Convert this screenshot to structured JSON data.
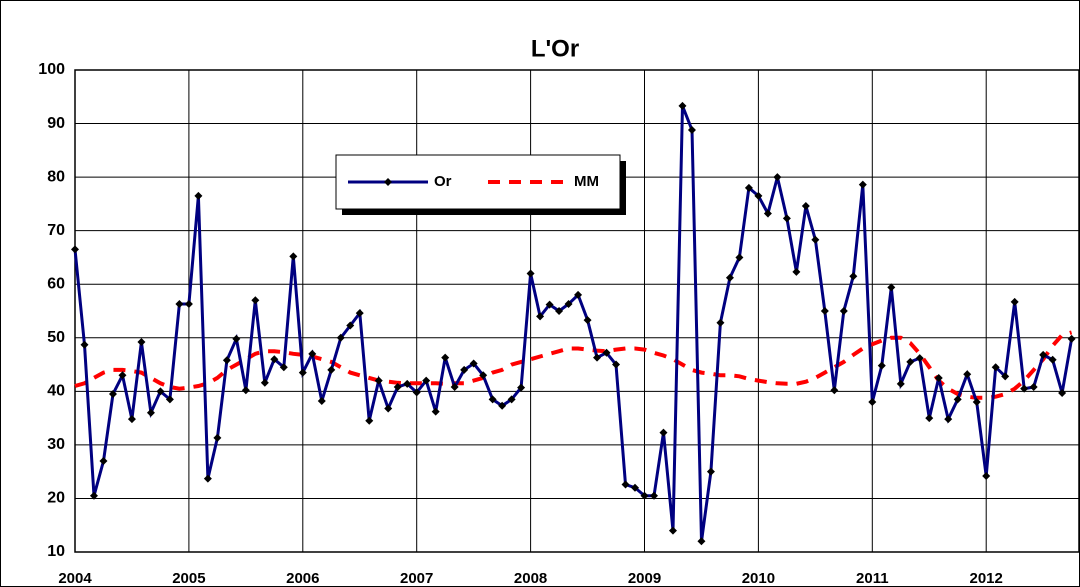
{
  "chart_data": {
    "type": "line",
    "title": "L'Or",
    "categories": [
      "2004",
      null,
      null,
      null,
      null,
      null,
      null,
      null,
      null,
      null,
      null,
      null,
      "2005",
      null,
      null,
      null,
      null,
      null,
      null,
      null,
      null,
      null,
      null,
      null,
      "2006",
      null,
      null,
      null,
      null,
      null,
      null,
      null,
      null,
      null,
      null,
      null,
      "2007",
      null,
      null,
      null,
      null,
      null,
      null,
      null,
      null,
      null,
      null,
      null,
      "2008",
      null,
      null,
      null,
      null,
      null,
      null,
      null,
      null,
      null,
      null,
      null,
      "2009",
      null,
      null,
      null,
      null,
      null,
      null,
      null,
      null,
      null,
      null,
      null,
      "2010",
      null,
      null,
      null,
      null,
      null,
      null,
      null,
      null,
      null,
      null,
      null,
      "2011",
      null,
      null,
      null,
      null,
      null,
      null,
      null,
      null,
      null,
      null,
      null,
      "2012",
      null,
      null,
      null,
      null,
      null,
      null,
      null,
      null,
      null
    ],
    "series": [
      {
        "name": "Or",
        "color": "#000080",
        "style": "solid",
        "values": [
          66.5,
          48.7,
          20.5,
          27,
          39.5,
          43,
          34.8,
          49.2,
          36,
          40,
          38.5,
          56.3,
          56.3,
          76.5,
          23.7,
          31.3,
          45.8,
          49.8,
          40.2,
          57,
          41.6,
          46,
          44.5,
          65.2,
          43.5,
          47,
          38.2,
          44,
          50,
          52.3,
          54.6,
          34.5,
          42,
          36.8,
          40.8,
          41.4,
          39.8,
          42,
          36.2,
          46.3,
          40.8,
          44,
          45.2,
          43,
          38.5,
          37.3,
          38.5,
          40.7,
          62,
          54,
          56.2,
          55,
          56.3,
          58,
          53.3,
          46.3,
          47.2,
          45,
          22.6,
          22,
          20.5,
          20.5,
          32.3,
          14,
          93.3,
          88.8,
          12,
          25,
          52.8,
          61.2,
          65,
          78,
          76.5,
          73.2,
          80,
          72.3,
          62.3,
          74.6,
          68.3,
          55,
          40.2,
          55,
          61.5,
          78.6,
          38,
          44.8,
          59.4,
          41.4,
          45.5,
          46.2,
          35,
          42.5,
          34.8,
          38.5,
          43.2,
          38,
          24.2,
          44.5,
          42.8,
          56.7,
          40.5,
          40.8,
          46.8,
          45.9,
          39.7,
          49.8
        ]
      },
      {
        "name": "MM",
        "color": "#ff0000",
        "style": "dashed",
        "values": [
          41,
          41.5,
          42.5,
          43.5,
          44,
          44,
          43.8,
          43.5,
          42.5,
          41.5,
          40.8,
          40.5,
          40.7,
          41,
          41.5,
          42.5,
          44,
          45,
          46,
          47,
          47.5,
          47.5,
          47.3,
          47,
          46.8,
          46.5,
          46,
          45.5,
          44.5,
          43.5,
          43,
          42.5,
          42,
          41.8,
          41.6,
          41.5,
          41.5,
          41.5,
          41.5,
          41.4,
          41.5,
          41.5,
          42,
          42.5,
          43.5,
          44,
          45,
          45.5,
          46,
          46.5,
          47,
          47.5,
          48,
          48,
          47.8,
          47.6,
          47.5,
          47.8,
          48,
          48,
          47.8,
          47.2,
          46.7,
          46,
          45,
          44,
          43.5,
          43.3,
          43,
          43,
          42.8,
          42.3,
          42,
          41.7,
          41.5,
          41.4,
          41.4,
          41.8,
          42.5,
          43.5,
          44.5,
          45.5,
          46.8,
          48,
          48.8,
          49.5,
          50,
          50,
          49,
          47,
          44.5,
          42,
          40.5,
          39.5,
          39,
          38.8,
          38.8,
          39,
          39.5,
          40.5,
          42,
          44,
          46,
          48.5,
          50.5,
          51
        ]
      }
    ],
    "ylim": [
      10,
      100
    ],
    "yticks": [
      10,
      20,
      30,
      40,
      50,
      60,
      70,
      80,
      90,
      100
    ],
    "grid": true
  }
}
